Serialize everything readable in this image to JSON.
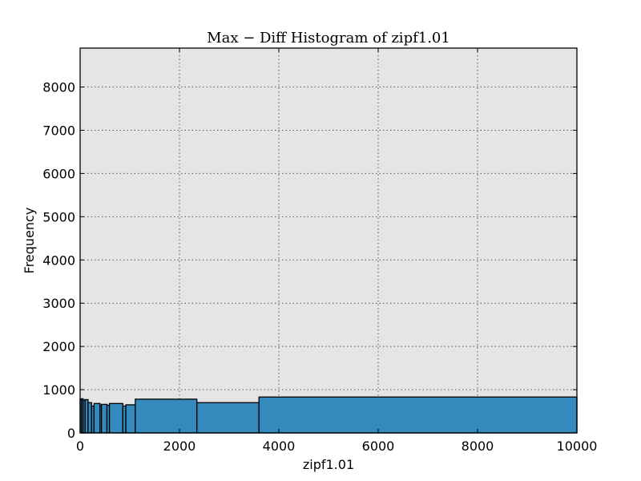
{
  "chart_data": {
    "type": "bar",
    "title": "Max − Diff Histogram of zipf1.01",
    "xlabel": "zipf1.01",
    "ylabel": "Frequency",
    "xlim": [
      0,
      10000
    ],
    "ylim": [
      0,
      8900
    ],
    "xticks": [
      "0",
      "2000",
      "4000",
      "6000",
      "8000",
      "10000"
    ],
    "yticks": [
      "0",
      "1000",
      "2000",
      "3000",
      "4000",
      "5000",
      "6000",
      "7000",
      "8000"
    ],
    "grid": true,
    "colors": {
      "bar_fill": "#348abd",
      "plot_background": "#e5e5e5",
      "bar_edge": "#000000"
    },
    "bins": [
      {
        "x0": 0,
        "x1": 30,
        "value": 780
      },
      {
        "x0": 30,
        "x1": 60,
        "value": 790
      },
      {
        "x0": 60,
        "x1": 100,
        "value": 760
      },
      {
        "x0": 100,
        "x1": 160,
        "value": 770
      },
      {
        "x0": 160,
        "x1": 230,
        "value": 700
      },
      {
        "x0": 230,
        "x1": 280,
        "value": 620
      },
      {
        "x0": 280,
        "x1": 400,
        "value": 680
      },
      {
        "x0": 400,
        "x1": 430,
        "value": 640
      },
      {
        "x0": 430,
        "x1": 540,
        "value": 660
      },
      {
        "x0": 540,
        "x1": 590,
        "value": 640
      },
      {
        "x0": 590,
        "x1": 860,
        "value": 680
      },
      {
        "x0": 860,
        "x1": 920,
        "value": 620
      },
      {
        "x0": 920,
        "x1": 1110,
        "value": 650
      },
      {
        "x0": 1110,
        "x1": 2350,
        "value": 780
      },
      {
        "x0": 2350,
        "x1": 3600,
        "value": 700
      },
      {
        "x0": 3600,
        "x1": 10000,
        "value": 830
      }
    ]
  }
}
